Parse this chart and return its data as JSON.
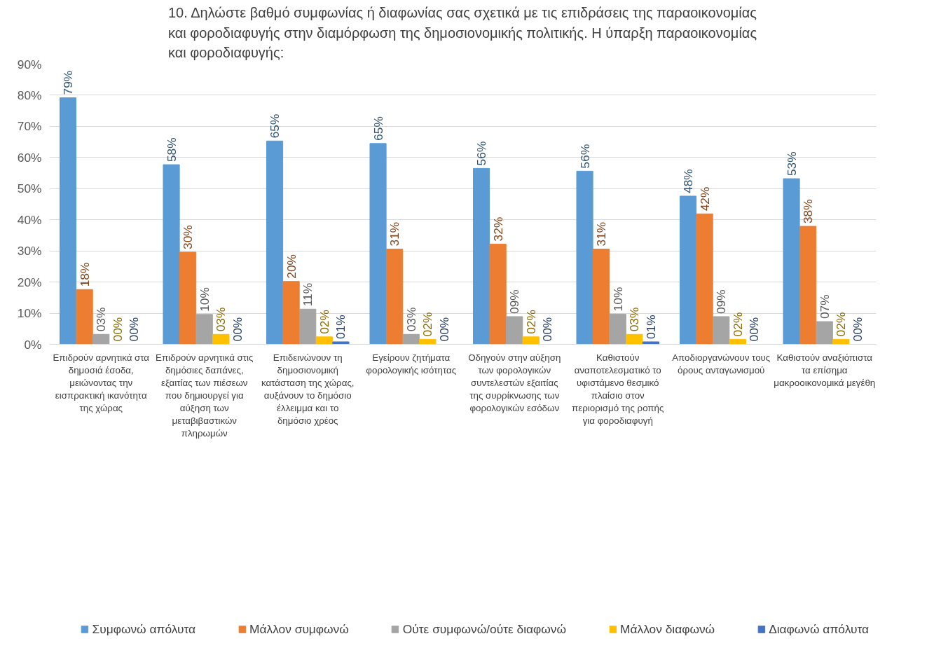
{
  "chart_data": {
    "type": "bar",
    "title": "10. Δηλώστε βαθμό συμφωνίας ή διαφωνίας σας σχετικά με τις επιδράσεις της παραοικονομίας και φοροδιαφυγής στην διαμόρφωση της δημοσιονομικής πολιτικής. Η ύπαρξη παραοικονομίας και φοροδιαφυγής:",
    "categories": [
      "Επιδρούν αρνητικά στα δημοσιά έσοδα, μειώνοντας την εισπρακτική ικανότητα της χώρας",
      "Επιδρούν αρνητικά στις δημόσιες δαπάνες, εξαιτίας των πιέσεων που δημιουργεί για αύξηση των μεταβιβαστικών πληρωμών",
      "Επιδεινώνουν τη δημοσιονομική κατάσταση της χώρας, αυξάνουν το δημόσιο έλλειμμα και το δημόσιο χρέος",
      "Εγείρουν ζητήματα φορολογικής ισότητας",
      "Οδηγούν στην αύξηση των φορολογικών συντελεστών εξαιτίας της συρρίκνωσης των φορολογικών εσόδων",
      "Καθιστούν αναποτελεσματικό το υφιστάμενο θεσμικό πλαίσιο στον περιορισμό της ροπής για φοροδιαφυγή",
      "Αποδιοργανώνουν τους όρους ανταγωνισμού",
      "Καθιστούν αναξιόπιστα τα επίσημα μακροοικονομικά μεγέθη"
    ],
    "series": [
      {
        "name": "Συμφωνώ απόλυτα",
        "color": "#5b9bd5",
        "values": [
          79.2,
          57.7,
          65.3,
          64.5,
          56.5,
          55.6,
          47.6,
          53.2
        ],
        "value_labels": [
          "79%",
          "58%",
          "65%",
          "65%",
          "56%",
          "56%",
          "48%",
          "53%"
        ]
      },
      {
        "name": "Μάλλον συμφωνώ",
        "color": "#ed7d31",
        "values": [
          17.6,
          29.6,
          20.2,
          30.6,
          32.2,
          30.6,
          41.9,
          37.9
        ],
        "value_labels": [
          "18%",
          "30%",
          "20%",
          "31%",
          "32%",
          "31%",
          "42%",
          "38%"
        ]
      },
      {
        "name": "Ούτε συμφωνώ/ούτε διαφωνώ",
        "color": "#a5a5a5",
        "values": [
          3.2,
          9.6,
          11.3,
          3.2,
          8.9,
          9.7,
          8.9,
          7.3
        ],
        "value_labels": [
          "03%",
          "10%",
          "11%",
          "03%",
          "09%",
          "10%",
          "09%",
          "07%"
        ]
      },
      {
        "name": "Μάλλον διαφωνώ",
        "color": "#ffc000",
        "values": [
          0,
          3.2,
          2.4,
          1.6,
          2.4,
          3.2,
          1.6,
          1.6
        ],
        "value_labels": [
          "00%",
          "03%",
          "02%",
          "02%",
          "02%",
          "03%",
          "02%",
          "02%"
        ]
      },
      {
        "name": "Διαφωνώ απόλυτα",
        "color": "#4472c4",
        "values": [
          0,
          0,
          0.8,
          0,
          0,
          0.8,
          0,
          0
        ],
        "value_labels": [
          "00%",
          "00%",
          "01%",
          "00%",
          "00%",
          "01%",
          "00%",
          "00%"
        ]
      }
    ],
    "ylim": [
      0,
      90
    ],
    "yticks": [
      {
        "value": 0,
        "label": "0%"
      },
      {
        "value": 10,
        "label": "10%"
      },
      {
        "value": 20,
        "label": "20%"
      },
      {
        "value": 30,
        "label": "30%"
      },
      {
        "value": 40,
        "label": "40%"
      },
      {
        "value": 50,
        "label": "50%"
      },
      {
        "value": 60,
        "label": "60%"
      },
      {
        "value": 70,
        "label": "70%"
      },
      {
        "value": 80,
        "label": "80%"
      },
      {
        "value": 90,
        "label": "90%"
      }
    ],
    "grid": "y",
    "legend": "bottom"
  }
}
